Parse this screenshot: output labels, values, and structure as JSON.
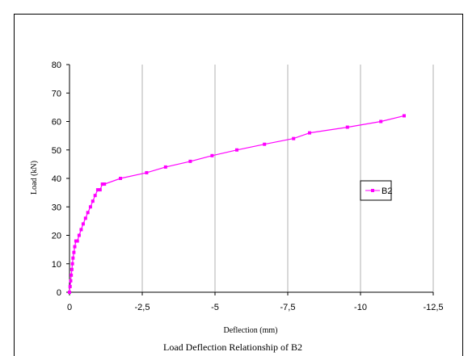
{
  "chart_data": {
    "type": "line",
    "title": "Load Deflection Relationship of B2",
    "xlabel": "Deflection (mm)",
    "ylabel": "Load (kN)",
    "xlim": [
      0,
      -12.5
    ],
    "ylim": [
      0,
      80
    ],
    "x_ticks": [
      0,
      -2.5,
      -5,
      -7.5,
      -10,
      -12.5
    ],
    "x_tick_labels": [
      "0",
      "-2,5",
      "-5",
      "-7,5",
      "-10",
      "-12,5"
    ],
    "y_ticks": [
      0,
      10,
      20,
      30,
      40,
      50,
      60,
      70,
      80
    ],
    "y_tick_labels": [
      "0",
      "10",
      "20",
      "30",
      "40",
      "50",
      "60",
      "70",
      "80"
    ],
    "x_grid": true,
    "y_grid": false,
    "legend_position": "right",
    "series": [
      {
        "name": "B2",
        "color": "#ff00ff",
        "marker": "square",
        "x": [
          0,
          -0.02,
          -0.04,
          -0.06,
          -0.08,
          -0.1,
          -0.12,
          -0.15,
          -0.18,
          -0.22,
          -0.27,
          -0.33,
          -0.4,
          -0.47,
          -0.55,
          -0.63,
          -0.72,
          -0.8,
          -0.88,
          -0.97,
          -1.05,
          -1.13,
          -1.2,
          -1.75,
          -2.65,
          -3.3,
          -4.15,
          -4.9,
          -5.75,
          -6.7,
          -7.7,
          -8.25,
          -9.55,
          -10.7,
          -11.5
        ],
        "y": [
          0,
          2,
          4,
          6,
          8,
          10,
          12,
          14,
          16,
          18,
          18,
          20,
          22,
          24,
          26,
          28,
          30,
          32,
          34,
          36,
          36,
          38,
          38,
          40,
          42,
          44,
          46,
          48,
          50,
          52,
          54,
          56,
          58,
          60,
          62
        ]
      }
    ]
  }
}
